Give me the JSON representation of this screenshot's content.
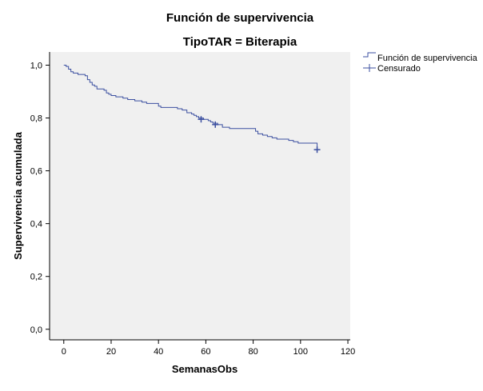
{
  "chart_data": {
    "type": "line",
    "title": "Función de supervivencia",
    "subtitle": "TipoTAR = Biterapia",
    "xlabel": "SemanasObs",
    "ylabel": "Supervivencia acumulada",
    "xlim": [
      -6,
      121
    ],
    "ylim": [
      -0.04,
      1.05
    ],
    "x_ticks": [
      0,
      20,
      40,
      60,
      80,
      100,
      120
    ],
    "y_ticks": [
      0.0,
      0.2,
      0.4,
      0.6,
      0.8,
      1.0
    ],
    "y_tick_labels": [
      "0,0",
      "0,2",
      "0,4",
      "0,6",
      "0,8",
      "1,0"
    ],
    "x_tick_labels": [
      "0",
      "20",
      "40",
      "60",
      "80",
      "100",
      "120"
    ],
    "grid": false,
    "legend_position": "top-right outside",
    "colors": {
      "line": "#3b4fa0",
      "plot_background": "#f0f0f0",
      "axis": "#000000"
    },
    "series": [
      {
        "name": "Función de supervivencia",
        "step": true,
        "points": [
          [
            0,
            1.0
          ],
          [
            1,
            0.995
          ],
          [
            2,
            0.985
          ],
          [
            3,
            0.975
          ],
          [
            4,
            0.97
          ],
          [
            6,
            0.965
          ],
          [
            9,
            0.96
          ],
          [
            10,
            0.945
          ],
          [
            11,
            0.935
          ],
          [
            12,
            0.925
          ],
          [
            13,
            0.92
          ],
          [
            14,
            0.91
          ],
          [
            17,
            0.905
          ],
          [
            18,
            0.895
          ],
          [
            19,
            0.89
          ],
          [
            20,
            0.885
          ],
          [
            22,
            0.88
          ],
          [
            25,
            0.875
          ],
          [
            27,
            0.87
          ],
          [
            30,
            0.865
          ],
          [
            33,
            0.86
          ],
          [
            35,
            0.855
          ],
          [
            40,
            0.845
          ],
          [
            41,
            0.84
          ],
          [
            48,
            0.835
          ],
          [
            50,
            0.83
          ],
          [
            52,
            0.82
          ],
          [
            54,
            0.815
          ],
          [
            55,
            0.81
          ],
          [
            56,
            0.805
          ],
          [
            57,
            0.8
          ],
          [
            59,
            0.795
          ],
          [
            61,
            0.79
          ],
          [
            62,
            0.785
          ],
          [
            63,
            0.78
          ],
          [
            65,
            0.775
          ],
          [
            67,
            0.765
          ],
          [
            70,
            0.76
          ],
          [
            81,
            0.75
          ],
          [
            82,
            0.74
          ],
          [
            84,
            0.735
          ],
          [
            86,
            0.73
          ],
          [
            88,
            0.725
          ],
          [
            90,
            0.72
          ],
          [
            95,
            0.715
          ],
          [
            97,
            0.71
          ],
          [
            99,
            0.705
          ],
          [
            107,
            0.68
          ]
        ]
      },
      {
        "name": "Censurado",
        "marker": "+",
        "points": [
          [
            58,
            0.795
          ],
          [
            64,
            0.775
          ],
          [
            107,
            0.68
          ]
        ]
      }
    ]
  }
}
